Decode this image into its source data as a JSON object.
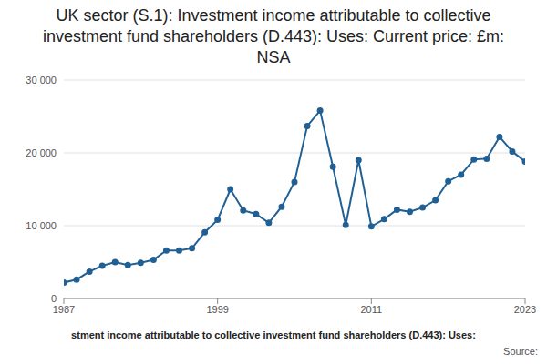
{
  "chart_data": {
    "type": "line",
    "title": "UK sector (S.1): Investment income attributable to collective investment fund shareholders (D.443): Uses: Current price: £m: NSA",
    "x_label": "stment income attributable to collective investment fund shareholders (D.443): Uses:",
    "source": "Source:",
    "x": [
      1987,
      1988,
      1989,
      1990,
      1991,
      1992,
      1993,
      1994,
      1995,
      1996,
      1997,
      1998,
      1999,
      2000,
      2001,
      2002,
      2003,
      2004,
      2005,
      2006,
      2007,
      2008,
      2009,
      2010,
      2011,
      2012,
      2013,
      2014,
      2015,
      2016,
      2017,
      2018,
      2019,
      2020,
      2021,
      2022,
      2023
    ],
    "values": [
      2200,
      2600,
      3700,
      4500,
      5000,
      4600,
      4900,
      5300,
      6600,
      6600,
      6900,
      9100,
      10800,
      15000,
      12100,
      11600,
      10400,
      12600,
      16000,
      23700,
      25800,
      18100,
      10100,
      19000,
      9900,
      10900,
      12200,
      11900,
      12500,
      13500,
      16100,
      17000,
      19100,
      19200,
      22200,
      20200,
      18800
    ],
    "color": "#206095",
    "marker": "circle",
    "xlim": [
      1987,
      2023
    ],
    "xticks": [
      1987,
      1999,
      2011,
      2023
    ],
    "ylim": [
      0,
      30000
    ],
    "yticks": [
      0,
      {
        "value": 10000,
        "label": "10 000"
      },
      {
        "value": 20000,
        "label": "20 000"
      },
      {
        "value": 30000,
        "label": "30 000"
      }
    ],
    "grid": true
  }
}
